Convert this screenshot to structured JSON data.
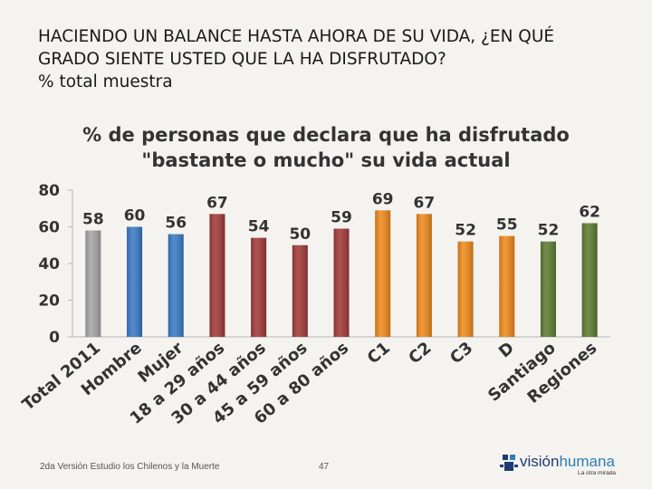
{
  "slide": {
    "title_line1": "HACIENDO UN BALANCE HASTA AHORA DE SU VIDA, ¿EN QUÉ",
    "title_line2": "GRADO SIENTE USTED QUE LA HA DISFRUTADO?",
    "title_line3": "%  total muestra"
  },
  "chart_data": {
    "type": "bar",
    "title_line1": "% de personas que declara que ha disfrutado",
    "title_line2": "\"bastante o mucho\" su vida actual",
    "categories": [
      "Total 2011",
      "Hombre",
      "Mujer",
      "18 a 29 años",
      "30 a 44 años",
      "45 a 59 años",
      "60 a 80 años",
      "C1",
      "C2",
      "C3",
      "D",
      "Santiago",
      "Regiones"
    ],
    "values": [
      58,
      60,
      56,
      67,
      54,
      50,
      59,
      69,
      67,
      52,
      55,
      52,
      62
    ],
    "colors": [
      "#a6a6a6",
      "#3a7bc8",
      "#3a7bc8",
      "#a23a3a",
      "#a23a3a",
      "#a23a3a",
      "#a23a3a",
      "#f08a1c",
      "#f08a1c",
      "#f08a1c",
      "#f08a1c",
      "#5e7d32",
      "#5e7d32"
    ],
    "yticks": [
      0,
      20,
      40,
      60,
      80
    ],
    "ylim": [
      0,
      80
    ],
    "grid": false
  },
  "footer": {
    "source": "2da Versión Estudio los Chilenos y la Muerte",
    "page": "47",
    "logo_part1": "visión",
    "logo_part2": "humana",
    "logo_tagline": "La otra mirada"
  }
}
